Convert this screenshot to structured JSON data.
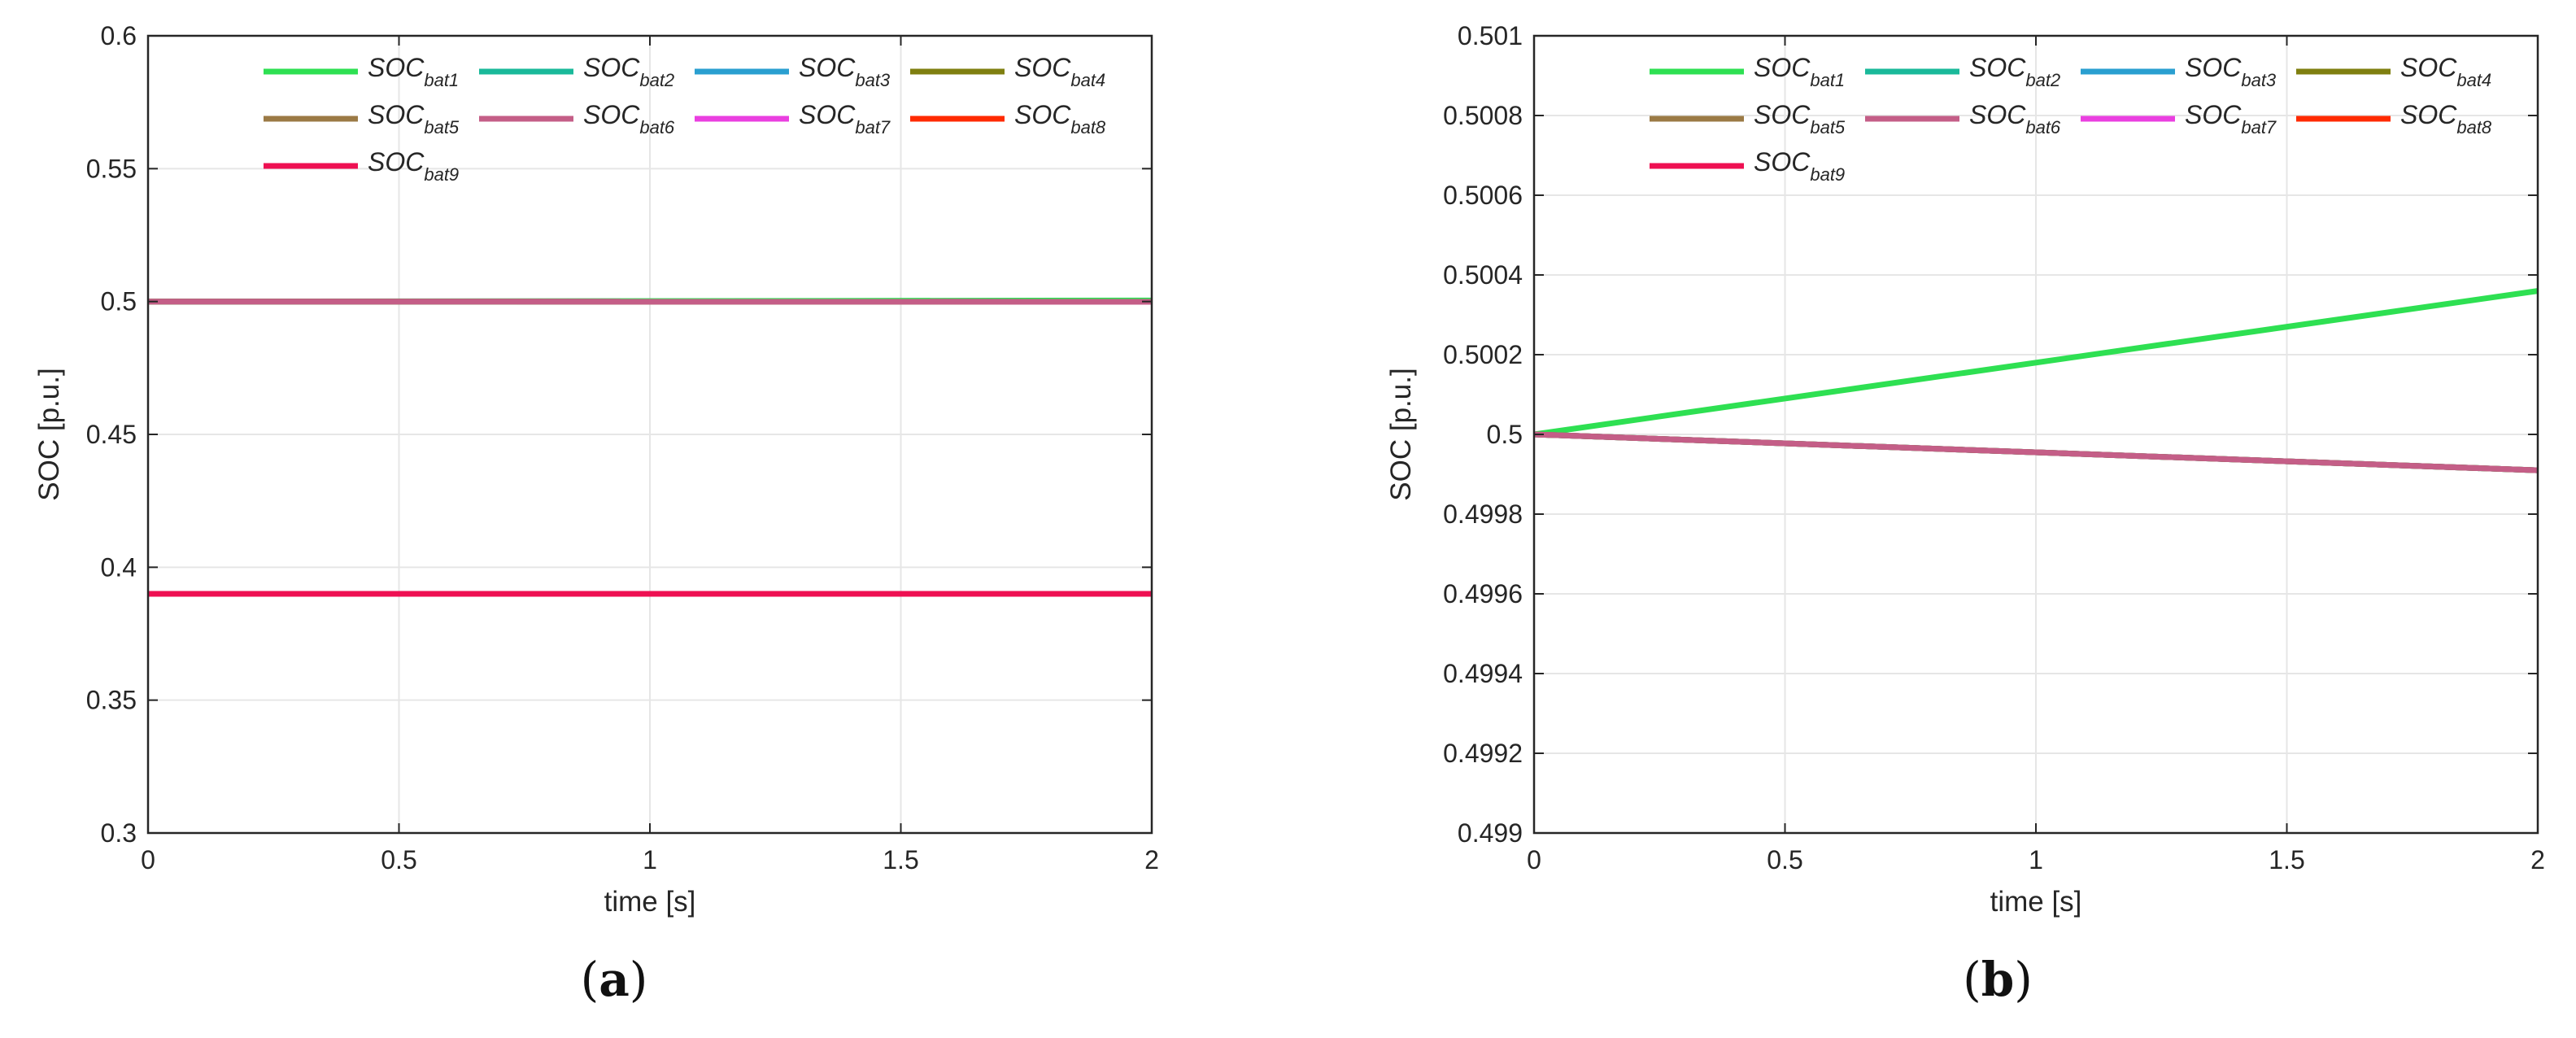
{
  "chart_data": [
    {
      "type": "line",
      "caption": "(a)",
      "xlabel": "time [s]",
      "ylabel": "SOC [p.u.]",
      "xlim": [
        0,
        2
      ],
      "ylim": [
        0.3,
        0.6
      ],
      "xticks": [
        0,
        0.5,
        1,
        1.5,
        2
      ],
      "xtick_labels": [
        "0",
        "0.5",
        "1",
        "1.5",
        "2"
      ],
      "yticks": [
        0.3,
        0.35,
        0.4,
        0.45,
        0.5,
        0.55,
        0.6
      ],
      "ytick_labels": [
        "0.3",
        "0.35",
        "0.4",
        "0.45",
        "0.5",
        "0.55",
        "0.6"
      ],
      "grid": true,
      "legend_position": "top",
      "series": [
        {
          "name": "SOC",
          "sub": "bat1",
          "color": "#2ee052",
          "x": [
            0,
            2
          ],
          "y": [
            0.5,
            0.5004
          ]
        },
        {
          "name": "SOC",
          "sub": "bat2",
          "color": "#1ab99a",
          "x": [
            0,
            2
          ],
          "y": [
            0.5,
            0.4999
          ]
        },
        {
          "name": "SOC",
          "sub": "bat3",
          "color": "#2a9fd0",
          "x": [
            0,
            2
          ],
          "y": [
            0.5,
            0.4999
          ]
        },
        {
          "name": "SOC",
          "sub": "bat4",
          "color": "#7f7f10",
          "x": [
            0,
            2
          ],
          "y": [
            0.5,
            0.4999
          ]
        },
        {
          "name": "SOC",
          "sub": "bat5",
          "color": "#9b7a45",
          "x": [
            0,
            2
          ],
          "y": [
            0.5,
            0.4999
          ]
        },
        {
          "name": "SOC",
          "sub": "bat6",
          "color": "#c45e87",
          "x": [
            0,
            2
          ],
          "y": [
            0.5,
            0.4999
          ]
        },
        {
          "name": "SOC",
          "sub": "bat7",
          "color": "#ea3fe0",
          "x": [
            0,
            2
          ],
          "y": [
            0.39,
            0.39
          ]
        },
        {
          "name": "SOC",
          "sub": "bat8",
          "color": "#ff2a00",
          "x": [
            0,
            2
          ],
          "y": [
            0.39,
            0.39
          ]
        },
        {
          "name": "SOC",
          "sub": "bat9",
          "color": "#ee1052",
          "x": [
            0,
            2
          ],
          "y": [
            0.39,
            0.39
          ]
        }
      ]
    },
    {
      "type": "line",
      "caption": "(b)",
      "xlabel": "time [s]",
      "ylabel": "SOC [p.u.]",
      "xlim": [
        0,
        2
      ],
      "ylim": [
        0.499,
        0.501
      ],
      "xticks": [
        0,
        0.5,
        1,
        1.5,
        2
      ],
      "xtick_labels": [
        "0",
        "0.5",
        "1",
        "1.5",
        "2"
      ],
      "yticks": [
        0.499,
        0.4992,
        0.4994,
        0.4996,
        0.4998,
        0.5,
        0.5002,
        0.5004,
        0.5006,
        0.5008,
        0.501
      ],
      "ytick_labels": [
        "0.499",
        "0.4992",
        "0.4994",
        "0.4996",
        "0.4998",
        "0.5",
        "0.5002",
        "0.5004",
        "0.5006",
        "0.5008",
        "0.501"
      ],
      "grid": true,
      "legend_position": "top",
      "series": [
        {
          "name": "SOC",
          "sub": "bat1",
          "color": "#2ee052",
          "x": [
            0,
            2
          ],
          "y": [
            0.5,
            0.50036
          ]
        },
        {
          "name": "SOC",
          "sub": "bat2",
          "color": "#1ab99a",
          "x": [
            0,
            2
          ],
          "y": [
            0.5,
            0.49991
          ]
        },
        {
          "name": "SOC",
          "sub": "bat3",
          "color": "#2a9fd0",
          "x": [
            0,
            2
          ],
          "y": [
            0.5,
            0.49991
          ]
        },
        {
          "name": "SOC",
          "sub": "bat4",
          "color": "#7f7f10",
          "x": [
            0,
            2
          ],
          "y": [
            0.5,
            0.49991
          ]
        },
        {
          "name": "SOC",
          "sub": "bat5",
          "color": "#9b7a45",
          "x": [
            0,
            2
          ],
          "y": [
            0.5,
            0.49991
          ]
        },
        {
          "name": "SOC",
          "sub": "bat6",
          "color": "#c45e87",
          "x": [
            0,
            2
          ],
          "y": [
            0.5,
            0.49991
          ]
        },
        {
          "name": "SOC",
          "sub": "bat7",
          "color": "#ea3fe0",
          "x": [],
          "y": []
        },
        {
          "name": "SOC",
          "sub": "bat8",
          "color": "#ff2a00",
          "x": [],
          "y": []
        },
        {
          "name": "SOC",
          "sub": "bat9",
          "color": "#ee1052",
          "x": [],
          "y": []
        }
      ]
    }
  ]
}
